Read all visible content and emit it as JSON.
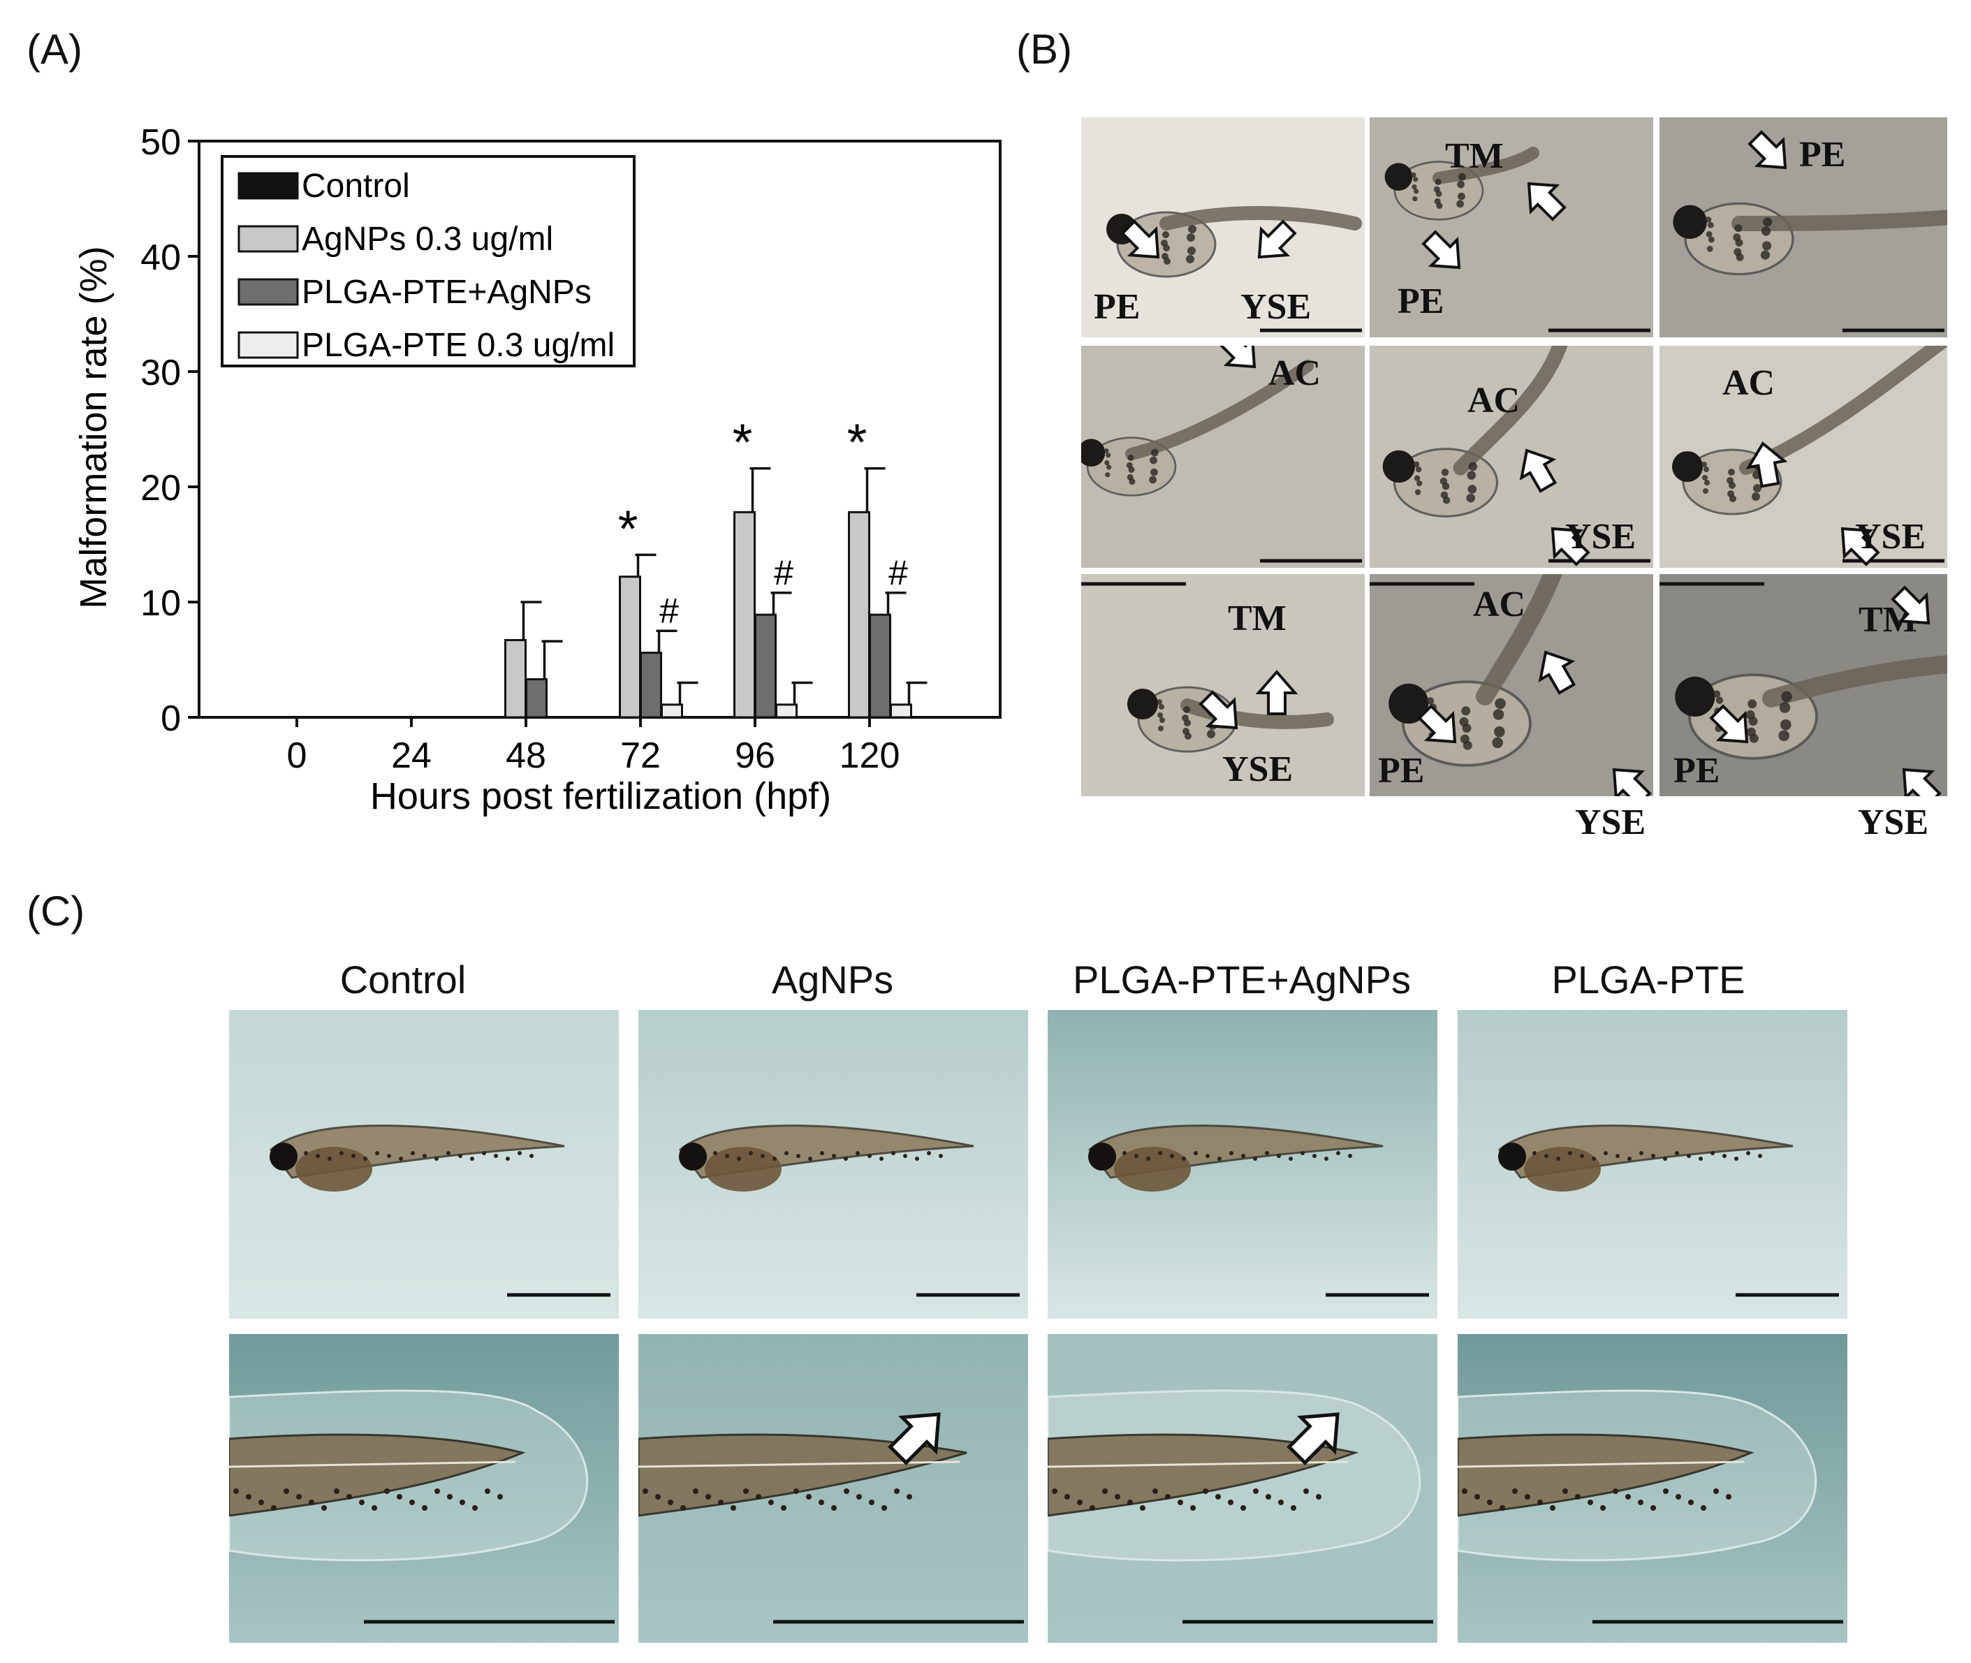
{
  "panel_labels": {
    "a": "(A)",
    "b": "(B)",
    "c": "(C)"
  },
  "chart_data": {
    "type": "bar",
    "xlabel": "Hours post fertilization (hpf)",
    "ylabel": "Malformation rate (%)",
    "ylim": [
      0,
      50
    ],
    "yticks": [
      "0",
      "10",
      "20",
      "30",
      "40",
      "50"
    ],
    "categories": [
      "0",
      "24",
      "48",
      "72",
      "96",
      "120"
    ],
    "legend_position": "top-left",
    "series": [
      {
        "name": "Control",
        "color": "#111111",
        "values": [
          0,
          0,
          0,
          0,
          0,
          0
        ],
        "errors": [
          0,
          0,
          0,
          0,
          0,
          0
        ]
      },
      {
        "name": "AgNPs 0.3 ug/ml",
        "color": "#c8c8c8",
        "values": [
          0,
          0,
          6.7,
          12.2,
          17.8,
          17.8
        ],
        "errors": [
          0,
          0,
          3.3,
          1.9,
          3.8,
          3.8
        ]
      },
      {
        "name": "PLGA-PTE+AgNPs",
        "color": "#6e6e6e",
        "values": [
          0,
          0,
          3.3,
          5.6,
          8.9,
          8.9
        ],
        "errors": [
          0,
          0,
          3.3,
          1.9,
          1.9,
          1.9
        ]
      },
      {
        "name": "PLGA-PTE 0.3 ug/ml",
        "color": "#ededed",
        "values": [
          0,
          0,
          0,
          1.1,
          1.1,
          1.1
        ],
        "errors": [
          0,
          0,
          0,
          1.9,
          1.9,
          1.9
        ]
      }
    ],
    "annotations": [
      {
        "category": "72",
        "series": "AgNPs 0.3 ug/ml",
        "text": "*"
      },
      {
        "category": "96",
        "series": "AgNPs 0.3 ug/ml",
        "text": "*"
      },
      {
        "category": "120",
        "series": "AgNPs 0.3 ug/ml",
        "text": "*"
      },
      {
        "category": "72",
        "series": "PLGA-PTE+AgNPs",
        "text": "#"
      },
      {
        "category": "96",
        "series": "PLGA-PTE+AgNPs",
        "text": "#"
      },
      {
        "category": "120",
        "series": "PLGA-PTE+AgNPs",
        "text": "#"
      }
    ]
  },
  "panel_b": {
    "labels": {
      "pe": "PE",
      "yse": "YSE",
      "tm": "TM",
      "ac": "AC"
    }
  },
  "panel_c": {
    "titles": [
      "Control",
      "AgNPs",
      "PLGA-PTE+AgNPs",
      "PLGA-PTE"
    ]
  }
}
